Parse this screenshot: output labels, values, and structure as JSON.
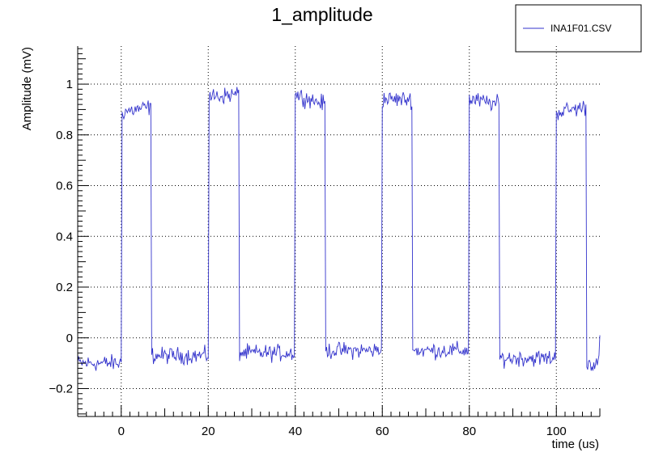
{
  "chart_data": {
    "type": "line",
    "title": "1_amplitude",
    "xlabel": "time (us)",
    "ylabel": "Amplitude (mV)",
    "xlim": [
      -10,
      110
    ],
    "ylim": [
      -0.31,
      1.15
    ],
    "x_ticks": [
      0,
      20,
      40,
      60,
      80,
      100
    ],
    "x_tick_labels": [
      "0",
      "20",
      "40",
      "60",
      "80",
      "100"
    ],
    "y_ticks": [
      -0.2,
      0,
      0.2,
      0.4,
      0.6,
      0.8,
      1
    ],
    "y_tick_labels": [
      "−0.2",
      "0",
      "0.2",
      "0.4",
      "0.6",
      "0.8",
      "1"
    ],
    "grid": true,
    "legend_position": "top-right",
    "colors": {
      "series": "#3333cc",
      "grid": "#000000",
      "axis": "#000000"
    },
    "series": [
      {
        "name": "INA1F01.CSV",
        "pulse_period_us": 20,
        "pulse_width_us": 7,
        "first_rise_us": 0,
        "pulses": [
          {
            "start": 0,
            "end": 7,
            "high_start": 0.89,
            "high_end": 0.91
          },
          {
            "start": 20,
            "end": 27,
            "high_start": 0.95,
            "high_end": 0.96
          },
          {
            "start": 40,
            "end": 47,
            "high_start": 0.96,
            "high_end": 0.92
          },
          {
            "start": 60,
            "end": 67,
            "high_start": 0.94,
            "high_end": 0.94
          },
          {
            "start": 80,
            "end": 87,
            "high_start": 0.94,
            "high_end": 0.92
          },
          {
            "start": 100,
            "end": 107,
            "high_start": 0.89,
            "high_end": 0.91
          }
        ],
        "baseline_segments": [
          {
            "start": -10,
            "end": 0,
            "level": -0.1
          },
          {
            "start": 7,
            "end": 20,
            "level": -0.07
          },
          {
            "start": 27,
            "end": 40,
            "level": -0.06
          },
          {
            "start": 47,
            "end": 60,
            "level": -0.05
          },
          {
            "start": 67,
            "end": 80,
            "level": -0.05
          },
          {
            "start": 87,
            "end": 100,
            "level": -0.08
          },
          {
            "start": 107,
            "end": 110,
            "level": -0.1
          }
        ],
        "noise_amplitude": 0.02,
        "sample_step_us": 0.2
      }
    ]
  }
}
